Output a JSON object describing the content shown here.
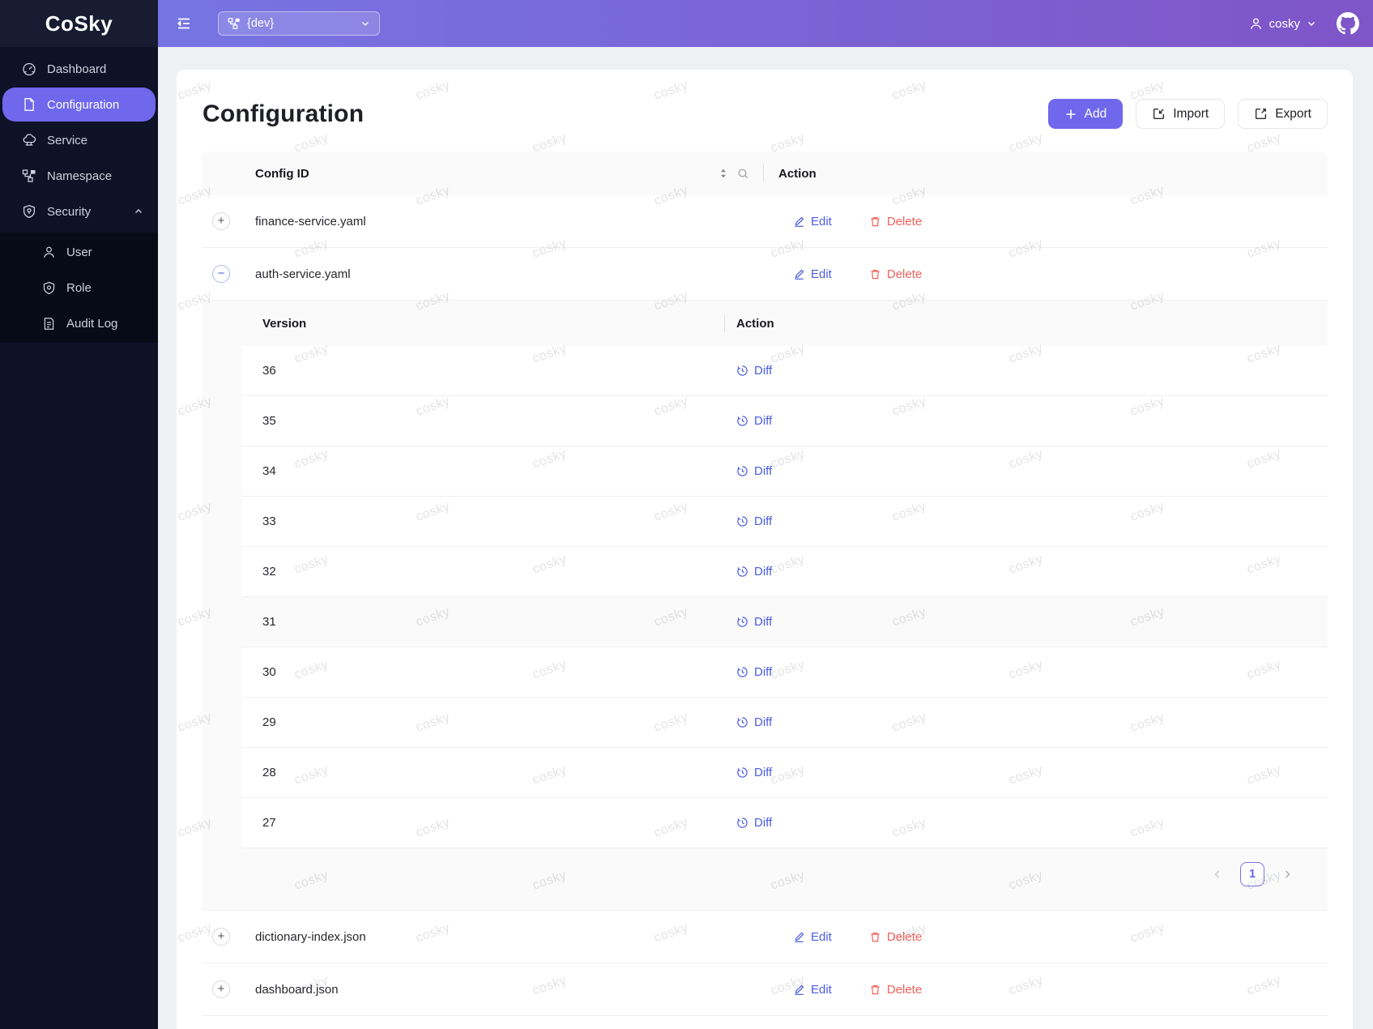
{
  "app": {
    "name": "CoSky"
  },
  "topbar": {
    "namespace_value": "{dev}",
    "user_name": "cosky"
  },
  "sidebar": {
    "items": [
      {
        "label": "Dashboard"
      },
      {
        "label": "Configuration",
        "active": true
      },
      {
        "label": "Service"
      },
      {
        "label": "Namespace"
      },
      {
        "label": "Security",
        "expanded": true
      }
    ],
    "security_children": [
      {
        "label": "User"
      },
      {
        "label": "Role"
      },
      {
        "label": "Audit Log"
      }
    ]
  },
  "page": {
    "title": "Configuration",
    "add_label": "Add",
    "import_label": "Import",
    "export_label": "Export"
  },
  "table": {
    "config_id_header": "Config ID",
    "action_header": "Action",
    "edit_label": "Edit",
    "delete_label": "Delete",
    "rows": [
      {
        "config_id": "finance-service.yaml",
        "expanded": false
      },
      {
        "config_id": "auth-service.yaml",
        "expanded": true
      },
      {
        "config_id": "dictionary-index.json",
        "expanded": false
      },
      {
        "config_id": "dashboard.json",
        "expanded": false
      }
    ]
  },
  "versions_table": {
    "version_header": "Version",
    "action_header": "Action",
    "diff_label": "Diff",
    "versions": [
      "36",
      "35",
      "34",
      "33",
      "32",
      "31",
      "30",
      "29",
      "28",
      "27"
    ],
    "highlighted_version": "31",
    "pagination": {
      "current_page": "1"
    }
  },
  "icons": {
    "expand_collapsed": "+",
    "expand_expanded": "−"
  },
  "watermark": {
    "text": "cosky"
  },
  "colors": {
    "accent": "#6f68ec",
    "link_blue": "#4a5ce0",
    "danger_red": "#f2605a",
    "sidebar_bg": "#0d1226",
    "topbar_gradient_start": "#7674e3",
    "topbar_gradient_end": "#7f55c8"
  }
}
